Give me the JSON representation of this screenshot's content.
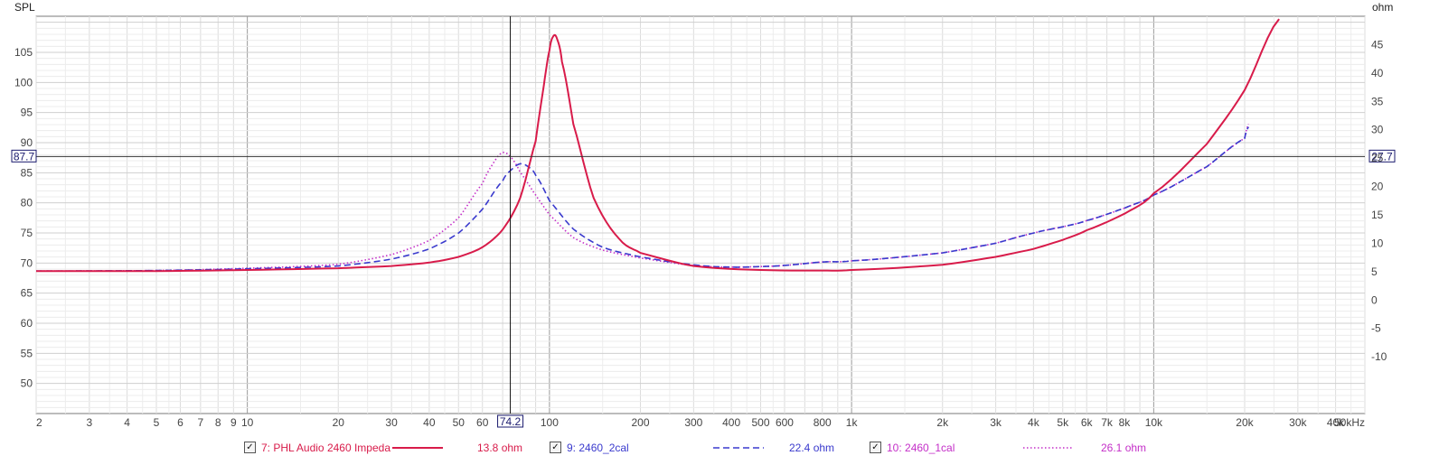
{
  "chart_data": {
    "type": "line",
    "xscale": "log",
    "xlim": [
      2,
      50000
    ],
    "ylim": [
      45,
      111
    ],
    "y2lim": [
      -20,
      50
    ],
    "ylabel": "SPL",
    "y2label": "ohm",
    "x_ticks": [
      {
        "v": 2,
        "label": "2"
      },
      {
        "v": 3,
        "label": "3"
      },
      {
        "v": 4,
        "label": "4"
      },
      {
        "v": 5,
        "label": "5"
      },
      {
        "v": 6,
        "label": "6"
      },
      {
        "v": 7,
        "label": "7"
      },
      {
        "v": 8,
        "label": "8"
      },
      {
        "v": 9,
        "label": "9"
      },
      {
        "v": 10,
        "label": "10"
      },
      {
        "v": 20,
        "label": "20"
      },
      {
        "v": 30,
        "label": "30"
      },
      {
        "v": 40,
        "label": "40"
      },
      {
        "v": 50,
        "label": "50"
      },
      {
        "v": 60,
        "label": "60"
      },
      {
        "v": 100,
        "label": "100"
      },
      {
        "v": 200,
        "label": "200"
      },
      {
        "v": 300,
        "label": "300"
      },
      {
        "v": 400,
        "label": "400"
      },
      {
        "v": 500,
        "label": "500"
      },
      {
        "v": 600,
        "label": "600"
      },
      {
        "v": 800,
        "label": "800"
      },
      {
        "v": 1000,
        "label": "1k"
      },
      {
        "v": 2000,
        "label": "2k"
      },
      {
        "v": 3000,
        "label": "3k"
      },
      {
        "v": 4000,
        "label": "4k"
      },
      {
        "v": 5000,
        "label": "5k"
      },
      {
        "v": 6000,
        "label": "6k"
      },
      {
        "v": 7000,
        "label": "7k"
      },
      {
        "v": 8000,
        "label": "8k"
      },
      {
        "v": 10000,
        "label": "10k"
      },
      {
        "v": 20000,
        "label": "20k"
      },
      {
        "v": 30000,
        "label": "30k"
      },
      {
        "v": 40000,
        "label": "40k"
      },
      {
        "v": 50000,
        "label": "50kHz"
      }
    ],
    "y_ticks": [
      "50",
      "55",
      "60",
      "65",
      "70",
      "75",
      "80",
      "85",
      "90",
      "95",
      "100",
      "105"
    ],
    "y2_ticks": [
      "-10",
      "-5",
      "0",
      "5",
      "10",
      "15",
      "20",
      "25",
      "30",
      "35",
      "40",
      "45"
    ],
    "cursor": {
      "x_label": "74.2",
      "x_value": 74.2,
      "y_label": "87.7",
      "y_value": 87.7,
      "y2_label": "27.7"
    },
    "grid": true,
    "legend_position": "bottom",
    "series": [
      {
        "name": "7: PHL Audio 2460 Impeda",
        "readout": "13.8 ohm",
        "axis": "right",
        "color": "#d81b4a",
        "style": "solid",
        "x": [
          2,
          5,
          10,
          20,
          30,
          40,
          50,
          60,
          70,
          80,
          90,
          95,
          100,
          103,
          106,
          110,
          120,
          140,
          170,
          200,
          300,
          500,
          800,
          1000,
          2000,
          3000,
          4000,
          5000,
          6000,
          8000,
          10000,
          15000,
          20000,
          26000
        ],
        "y": [
          5.1,
          5.1,
          5.3,
          5.6,
          6.0,
          6.6,
          7.6,
          9.3,
          12.4,
          18.0,
          28.0,
          36.5,
          44.0,
          46.5,
          46.0,
          42.0,
          31.0,
          18.0,
          10.8,
          8.3,
          6.0,
          5.3,
          5.2,
          5.3,
          6.2,
          7.6,
          9.0,
          10.6,
          12.3,
          15.2,
          18.8,
          27.5,
          37.0,
          49.5
        ]
      },
      {
        "name": "9: 2460_2cal",
        "readout": "22.4 ohm",
        "axis": "right",
        "color": "#3a3acd",
        "style": "dashed",
        "x": [
          2,
          5,
          10,
          20,
          30,
          40,
          50,
          60,
          70,
          75,
          80,
          85,
          90,
          100,
          120,
          150,
          200,
          300,
          400,
          500,
          600,
          800,
          1000,
          2000,
          3000,
          4000,
          5000,
          6000,
          8000,
          10000,
          15000,
          20000,
          20600
        ],
        "y": [
          5.1,
          5.2,
          5.5,
          6.0,
          7.2,
          9.0,
          11.8,
          16.0,
          21.0,
          23.0,
          24.0,
          23.5,
          22.0,
          17.5,
          12.5,
          9.3,
          7.6,
          6.2,
          5.8,
          5.9,
          6.1,
          6.7,
          6.9,
          8.3,
          10.0,
          11.8,
          12.9,
          14.0,
          16.2,
          18.5,
          23.5,
          28.5,
          30.5
        ]
      },
      {
        "name": "10: 2460_1cal",
        "readout": "26.1 ohm",
        "axis": "right",
        "color": "#c42fc8",
        "style": "dotted",
        "x": [
          2,
          5,
          10,
          20,
          30,
          40,
          50,
          60,
          65,
          70,
          75,
          80,
          90,
          100,
          120,
          150,
          200,
          300,
          400,
          500,
          600,
          800,
          1000,
          2000,
          3000,
          4000,
          5000,
          6000,
          8000,
          10000,
          15000,
          20000,
          20600
        ],
        "y": [
          5.1,
          5.2,
          5.6,
          6.3,
          8.0,
          10.5,
          14.5,
          20.5,
          24.0,
          26.0,
          25.0,
          22.5,
          18.5,
          15.0,
          11.0,
          8.8,
          7.4,
          6.1,
          5.8,
          5.9,
          6.1,
          6.7,
          6.9,
          8.3,
          10.0,
          11.8,
          12.9,
          14.0,
          16.2,
          18.5,
          23.5,
          28.5,
          31.0
        ]
      }
    ]
  }
}
